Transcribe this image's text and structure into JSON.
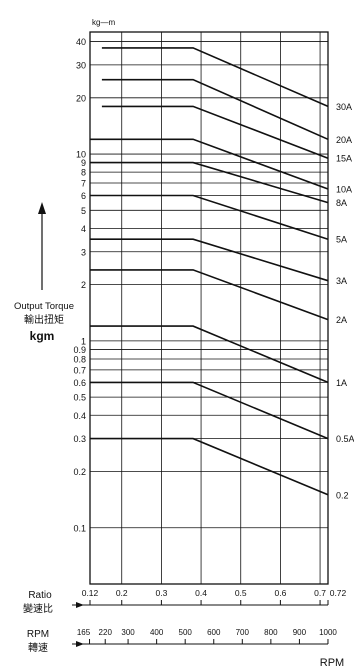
{
  "chart_data": {
    "type": "line",
    "y_scale": "log",
    "y_unit": "kg—m",
    "ylim": [
      0.05,
      45
    ],
    "grid": true,
    "y_label": {
      "line1": "Output Torque",
      "line2": "輸出扭矩",
      "line3": "kgm"
    },
    "y_ticks": [
      {
        "v": 40,
        "t": "40"
      },
      {
        "v": 30,
        "t": "30"
      },
      {
        "v": 20,
        "t": "20"
      },
      {
        "v": 10,
        "t": "10"
      },
      {
        "v": 9,
        "t": "9"
      },
      {
        "v": 8,
        "t": "8"
      },
      {
        "v": 7,
        "t": "7"
      },
      {
        "v": 6,
        "t": "6"
      },
      {
        "v": 5,
        "t": "5"
      },
      {
        "v": 4,
        "t": "4"
      },
      {
        "v": 3,
        "t": "3"
      },
      {
        "v": 2,
        "t": "2"
      },
      {
        "v": 1,
        "t": "1"
      },
      {
        "v": 0.9,
        "t": "0.9"
      },
      {
        "v": 0.8,
        "t": "0.8"
      },
      {
        "v": 0.7,
        "t": "0.7"
      },
      {
        "v": 0.6,
        "t": "0.6"
      },
      {
        "v": 0.5,
        "t": "0.5"
      },
      {
        "v": 0.4,
        "t": "0.4"
      },
      {
        "v": 0.3,
        "t": "0.3"
      },
      {
        "v": 0.2,
        "t": "0.2"
      },
      {
        "v": 0.1,
        "t": "0.1"
      }
    ],
    "ratio_axis": {
      "label": "Ratio",
      "label_cn": "變速比",
      "range": [
        0.12,
        0.72
      ],
      "ticks": [
        {
          "v": 0.12,
          "t": "0.12"
        },
        {
          "v": 0.2,
          "t": "0.2"
        },
        {
          "v": 0.3,
          "t": "0.3"
        },
        {
          "v": 0.4,
          "t": "0.4"
        },
        {
          "v": 0.5,
          "t": "0.5"
        },
        {
          "v": 0.6,
          "t": "0.6"
        },
        {
          "v": 0.7,
          "t": "0.7"
        },
        {
          "v": 0.72,
          "t": "0.72"
        }
      ]
    },
    "rpm_axis": {
      "label": "RPM",
      "label_cn": "轉速",
      "unit": "RPM",
      "ticks": [
        {
          "v": 165,
          "t": "165"
        },
        {
          "v": 220,
          "t": "220"
        },
        {
          "v": 300,
          "t": "300"
        },
        {
          "v": 400,
          "t": "400"
        },
        {
          "v": 500,
          "t": "500"
        },
        {
          "v": 600,
          "t": "600"
        },
        {
          "v": 700,
          "t": "700"
        },
        {
          "v": 800,
          "t": "800"
        },
        {
          "v": 900,
          "t": "900"
        },
        {
          "v": 1000,
          "t": "1000"
        }
      ]
    },
    "series": [
      {
        "name": "30A",
        "points": [
          [
            0.15,
            37
          ],
          [
            0.38,
            37
          ],
          [
            0.72,
            18
          ]
        ]
      },
      {
        "name": "20A",
        "points": [
          [
            0.15,
            25
          ],
          [
            0.38,
            25
          ],
          [
            0.72,
            12
          ]
        ]
      },
      {
        "name": "15A",
        "points": [
          [
            0.15,
            18
          ],
          [
            0.38,
            18
          ],
          [
            0.72,
            9.5
          ]
        ]
      },
      {
        "name": "10A",
        "points": [
          [
            0.12,
            12
          ],
          [
            0.38,
            12
          ],
          [
            0.72,
            6.5
          ]
        ]
      },
      {
        "name": "8A",
        "points": [
          [
            0.12,
            9
          ],
          [
            0.38,
            9
          ],
          [
            0.72,
            5.5
          ]
        ]
      },
      {
        "name": "5A",
        "points": [
          [
            0.12,
            6
          ],
          [
            0.38,
            6
          ],
          [
            0.72,
            3.5
          ]
        ]
      },
      {
        "name": "3A",
        "points": [
          [
            0.12,
            3.5
          ],
          [
            0.38,
            3.5
          ],
          [
            0.72,
            2.1
          ]
        ]
      },
      {
        "name": "2A",
        "points": [
          [
            0.12,
            2.4
          ],
          [
            0.38,
            2.4
          ],
          [
            0.72,
            1.3
          ]
        ]
      },
      {
        "name": "1A",
        "points": [
          [
            0.12,
            1.2
          ],
          [
            0.38,
            1.2
          ],
          [
            0.72,
            0.6
          ]
        ]
      },
      {
        "name": "0.5A",
        "points": [
          [
            0.12,
            0.6
          ],
          [
            0.38,
            0.6
          ],
          [
            0.72,
            0.3
          ]
        ]
      },
      {
        "name": "0.2",
        "points": [
          [
            0.12,
            0.3
          ],
          [
            0.38,
            0.3
          ],
          [
            0.72,
            0.15
          ]
        ]
      }
    ],
    "line_color": "#111111",
    "grid_color": "#111111"
  }
}
